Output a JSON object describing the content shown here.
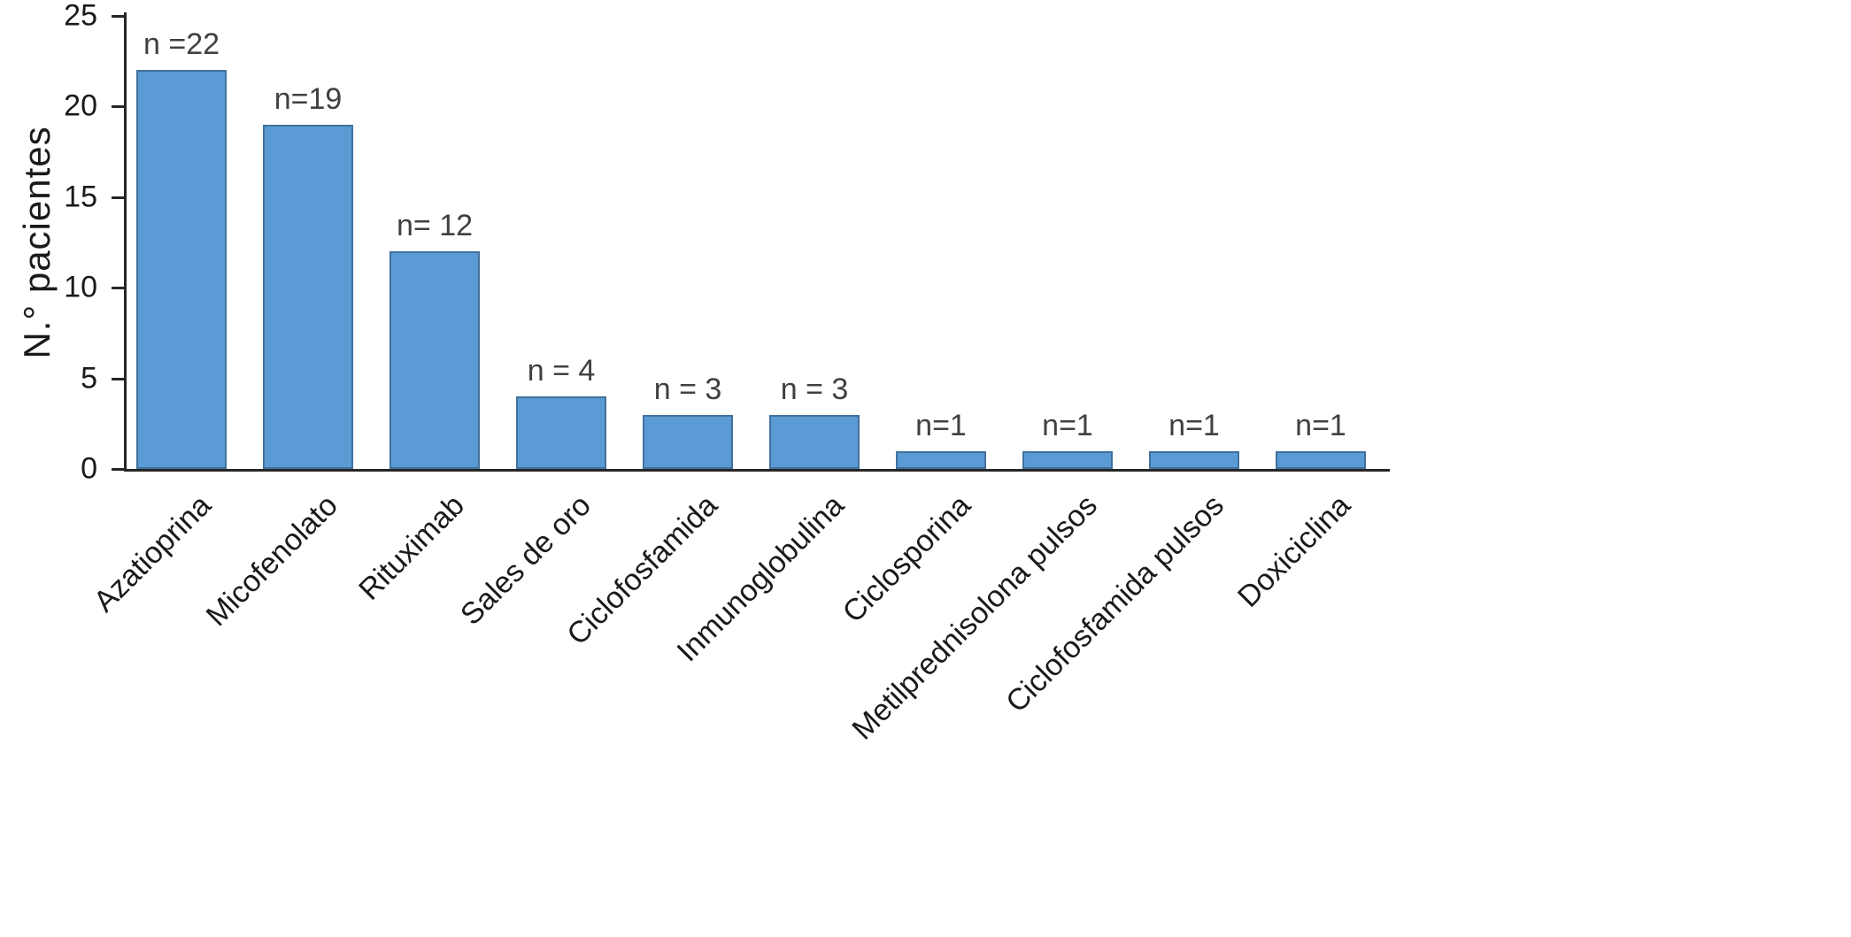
{
  "chart_data": {
    "type": "bar",
    "title": "",
    "xlabel": "",
    "ylabel": "N.° pacientes",
    "ylim": [
      0,
      25
    ],
    "yticks": [
      0,
      5,
      10,
      15,
      20,
      25
    ],
    "grid": false,
    "legend_position": "none",
    "bar_color": "#5B9BD5",
    "bar_border_color": "#41719C",
    "axis_color": "#262626",
    "categories": [
      "Azatioprina",
      "Micofenolato",
      "Rituximab",
      "Sales de oro",
      "Ciclofosfamida",
      "Inmunoglobulina",
      "Ciclosporina",
      "Metilprednisolona pulsos",
      "Ciclofosfamida pulsos",
      "Doxiciclina"
    ],
    "values": [
      22,
      19,
      12,
      4,
      3,
      3,
      1,
      1,
      1,
      1
    ],
    "value_labels": [
      "n =22",
      "n=19",
      "n= 12",
      "n = 4",
      "n = 3",
      "n = 3",
      "n=1",
      "n=1",
      "n=1",
      "n=1"
    ]
  }
}
